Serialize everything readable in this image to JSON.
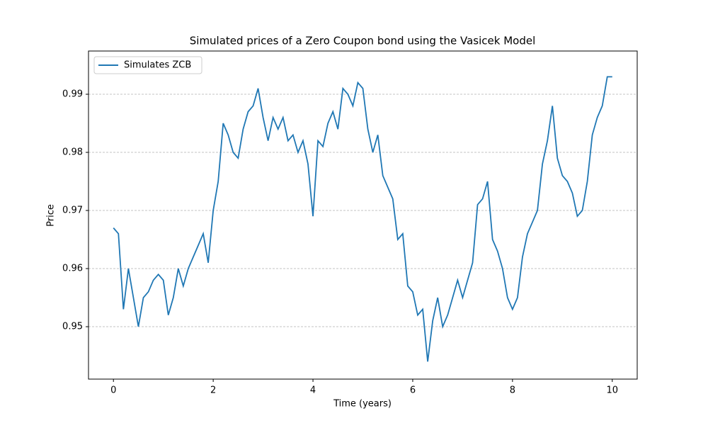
{
  "chart_data": {
    "type": "line",
    "title": "Simulated prices of a Zero Coupon bond using the Vasicek Model",
    "x_label": "Time (years)",
    "y_label": "Price",
    "x": [
      0.0,
      0.1,
      0.2,
      0.3,
      0.4,
      0.5,
      0.6,
      0.7,
      0.8,
      0.9,
      1.0,
      1.1,
      1.2,
      1.3,
      1.4,
      1.5,
      1.6,
      1.7,
      1.8,
      1.9,
      2.0,
      2.1,
      2.2,
      2.3,
      2.4,
      2.5,
      2.6,
      2.7,
      2.8,
      2.9,
      3.0,
      3.1,
      3.2,
      3.3,
      3.4,
      3.5,
      3.6,
      3.7,
      3.8,
      3.9,
      4.0,
      4.1,
      4.2,
      4.3,
      4.4,
      4.5,
      4.6,
      4.7,
      4.8,
      4.9,
      5.0,
      5.1,
      5.2,
      5.3,
      5.4,
      5.5,
      5.6,
      5.7,
      5.8,
      5.9,
      6.0,
      6.1,
      6.2,
      6.3,
      6.4,
      6.5,
      6.6,
      6.7,
      6.8,
      6.9,
      7.0,
      7.1,
      7.2,
      7.3,
      7.4,
      7.5,
      7.6,
      7.7,
      7.8,
      7.9,
      8.0,
      8.1,
      8.2,
      8.3,
      8.4,
      8.5,
      8.6,
      8.7,
      8.8,
      8.9,
      9.0,
      9.1,
      9.2,
      9.3,
      9.4,
      9.5,
      9.6,
      9.7,
      9.8,
      9.9,
      10.0
    ],
    "series": [
      {
        "name": "Simulates ZCB",
        "color": "#1f77b4",
        "values": [
          0.967,
          0.966,
          0.953,
          0.96,
          0.955,
          0.95,
          0.955,
          0.956,
          0.958,
          0.959,
          0.958,
          0.952,
          0.955,
          0.96,
          0.957,
          0.96,
          0.962,
          0.964,
          0.966,
          0.961,
          0.97,
          0.975,
          0.985,
          0.983,
          0.98,
          0.979,
          0.984,
          0.987,
          0.988,
          0.991,
          0.986,
          0.982,
          0.986,
          0.984,
          0.986,
          0.982,
          0.983,
          0.98,
          0.982,
          0.978,
          0.969,
          0.982,
          0.981,
          0.985,
          0.987,
          0.984,
          0.991,
          0.99,
          0.988,
          0.992,
          0.991,
          0.984,
          0.98,
          0.983,
          0.976,
          0.974,
          0.972,
          0.965,
          0.966,
          0.957,
          0.956,
          0.952,
          0.953,
          0.944,
          0.951,
          0.955,
          0.95,
          0.952,
          0.955,
          0.958,
          0.955,
          0.958,
          0.961,
          0.971,
          0.972,
          0.975,
          0.965,
          0.963,
          0.96,
          0.955,
          0.953,
          0.955,
          0.962,
          0.966,
          0.968,
          0.97,
          0.978,
          0.982,
          0.988,
          0.979,
          0.976,
          0.975,
          0.973,
          0.969,
          0.97,
          0.975,
          0.983,
          0.986,
          0.988,
          0.993,
          0.993
        ]
      }
    ],
    "xlim": [
      -0.5,
      10.5
    ],
    "xticks": [
      0,
      2,
      4,
      6,
      8,
      10
    ],
    "ylim": [
      0.94098,
      0.99744
    ],
    "yticks": [
      0.95,
      0.96,
      0.97,
      0.98,
      0.99
    ],
    "grid": true,
    "legend": "upper left"
  }
}
